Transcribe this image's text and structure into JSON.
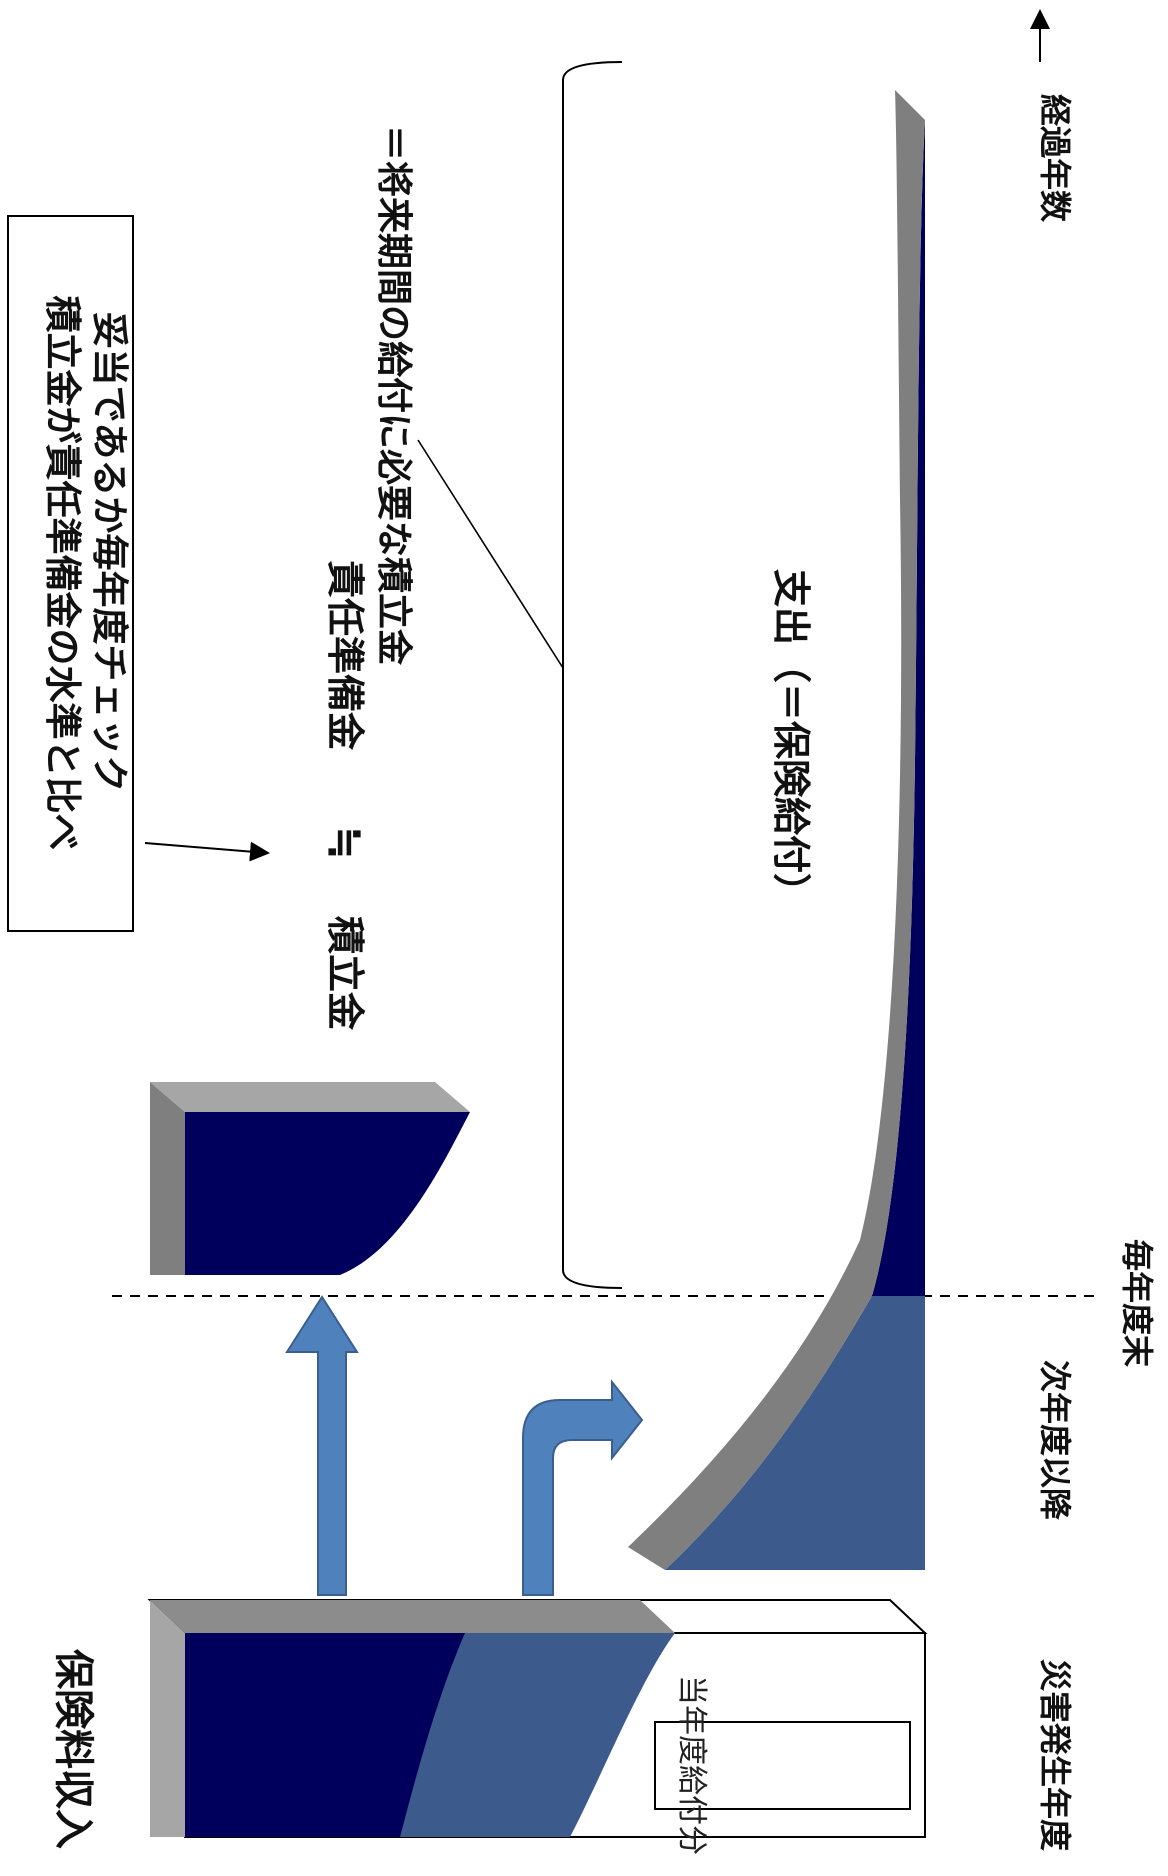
{
  "labels": {
    "premium_income": "保険料収入",
    "disaster_year": "災害発生年度",
    "next_year_onward": "次年度以降",
    "each_year_end": "毎年度末",
    "elapsed_years": "経過年数",
    "current_year_payment": "当年度給付分",
    "reserve_fund": "積立金",
    "approx_equal": "≒",
    "policy_reserve": "責任準備金",
    "policy_reserve_def": "＝将来期間の給付に必要な積立金",
    "expenditure": "支出（＝保険給付）",
    "check_box_line1": "積立金が責任準備金の水準と比べ",
    "check_box_line2": "妥当であるか毎年度チェック"
  },
  "colors": {
    "navy": "#00005c",
    "steel_blue": "#3c5a8c",
    "gray_top": "#a6a6a6",
    "gray_side": "#7f7f7f",
    "arrow_blue": "#4f81bd",
    "arrow_outline": "#3a5f8f"
  }
}
